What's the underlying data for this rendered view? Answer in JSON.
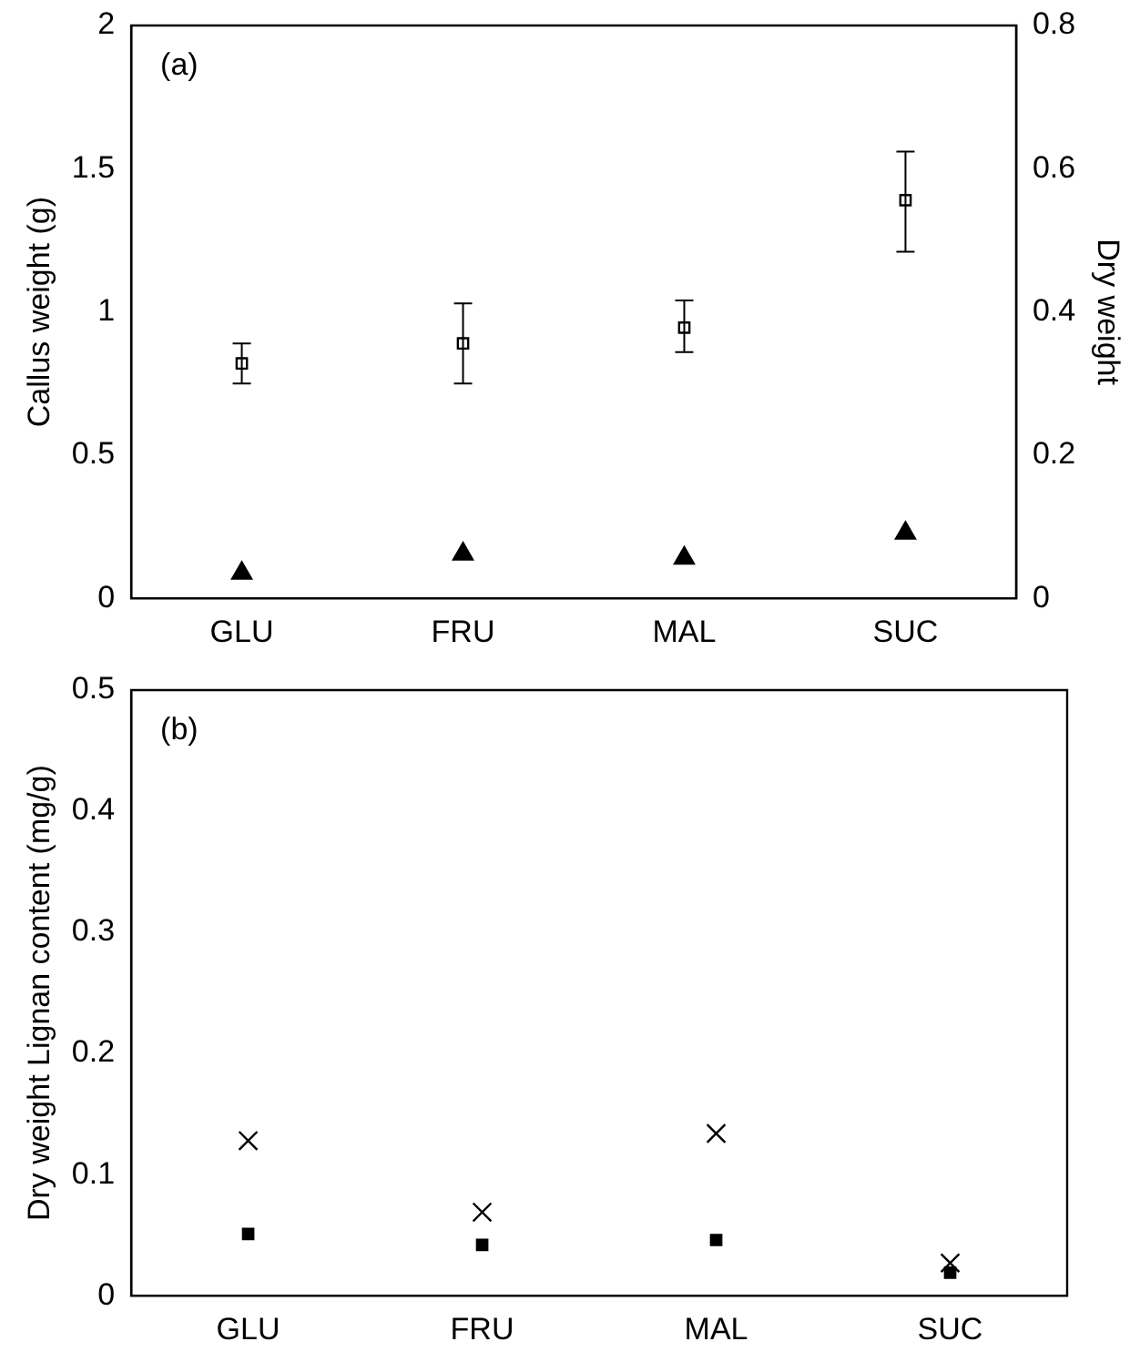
{
  "chart_data": [
    {
      "type": "scatter",
      "categories": [
        "GLU",
        "FRU",
        "MAL",
        "SUC"
      ],
      "ylabel": "Callus weight (g)",
      "y2label": "Dry weight",
      "ylim": [
        0,
        2
      ],
      "yticks": [
        0,
        0.5,
        1,
        1.5,
        2
      ],
      "y2lim": [
        0,
        0.8
      ],
      "y2ticks": [
        0,
        0.2,
        0.4,
        0.6,
        0.8
      ],
      "grid": false,
      "legend": false,
      "annotations": [
        "(a)"
      ],
      "series": [
        {
          "color": "#000000",
          "marker": "square",
          "values": [
            0.82,
            0.89,
            0.945,
            1.39
          ],
          "errors": [
            [
              0.75,
              0.89
            ],
            [
              0.75,
              1.03
            ],
            [
              0.86,
              1.04
            ],
            [
              1.21,
              1.56
            ]
          ]
        },
        {
          "color": "#000000",
          "marker": "triangle",
          "axis": "y2",
          "values": [
            0.035,
            0.062,
            0.056,
            0.091
          ]
        }
      ]
    },
    {
      "type": "scatter",
      "categories": [
        "GLU",
        "FRU",
        "MAL",
        "SUC"
      ],
      "ylabel": "Dry weight Lignan content (mg/g)",
      "ylim": [
        0,
        0.5
      ],
      "yticks": [
        0,
        0.1,
        0.2,
        0.3,
        0.4,
        0.5
      ],
      "grid": false,
      "legend": false,
      "annotations": [
        "(b)"
      ],
      "series": [
        {
          "color": "#000000",
          "marker": "cross",
          "values": [
            0.128,
            0.069,
            0.134,
            0.027
          ]
        },
        {
          "color": "#000000",
          "marker": "square",
          "values": [
            0.051,
            0.042,
            0.046,
            0.019
          ]
        }
      ]
    }
  ]
}
